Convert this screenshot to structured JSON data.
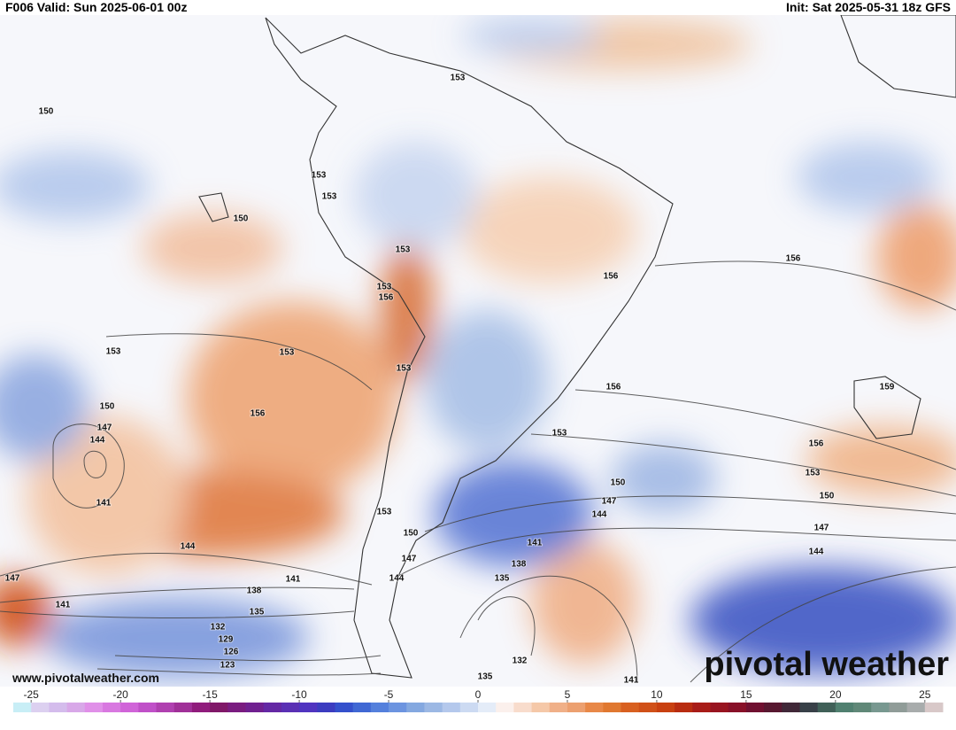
{
  "header": {
    "left": "F006 Valid: Sun 2025-06-01 00z",
    "right": "Init: Sat 2025-05-31 18z GFS"
  },
  "contour_labels": [
    150,
    150,
    153,
    153,
    153,
    153,
    153,
    156,
    153,
    156,
    156,
    153,
    153,
    150,
    147,
    144,
    141,
    156,
    159,
    156,
    153,
    156,
    153,
    150,
    150,
    147,
    144,
    147,
    153,
    150,
    147,
    144,
    141,
    138,
    135,
    144,
    141,
    147,
    138,
    141,
    135,
    132,
    129,
    126,
    123,
    144,
    132,
    135,
    141
  ],
  "colorbar": {
    "ticks": [
      -25,
      -20,
      -15,
      -10,
      -5,
      0,
      5,
      10,
      15,
      20,
      25
    ],
    "range": [
      -26,
      26
    ],
    "colors": [
      "#c8eef6",
      "#dcd0f0",
      "#d4bcec",
      "#d8a8e8",
      "#e090e8",
      "#d878e0",
      "#d064d8",
      "#c050c8",
      "#b040b0",
      "#a03098",
      "#901c7c",
      "#801868",
      "#7a1c80",
      "#702090",
      "#6428a4",
      "#5a30b4",
      "#5034c0",
      "#3c3cc0",
      "#3450cc",
      "#4068d4",
      "#5480dc",
      "#6c94e0",
      "#84a8e0",
      "#9cb8e4",
      "#b4c8ec",
      "#ccdaf2",
      "#e4ecf8",
      "#fbf0ec",
      "#f8dccc",
      "#f5c8a8",
      "#f0b088",
      "#eca070",
      "#e88848",
      "#e07830",
      "#d86020",
      "#d05018",
      "#c84010",
      "#b82c10",
      "#a81c18",
      "#981420",
      "#881028",
      "#701030",
      "#581830",
      "#402838",
      "#384048",
      "#406058",
      "#508070",
      "#608878",
      "#789890",
      "#909c98",
      "#a8acac",
      "#d8c8c8"
    ]
  },
  "footer": {
    "url": "www.pivotalweather.com",
    "logo": "pivotal weather"
  }
}
